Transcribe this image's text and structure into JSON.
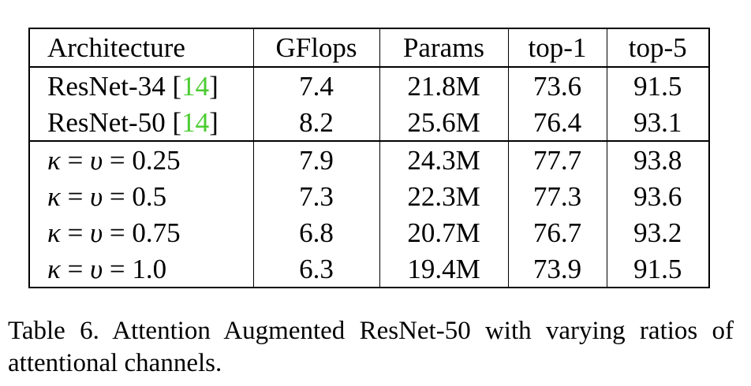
{
  "table": {
    "headers": [
      "Architecture",
      "GFlops",
      "Params",
      "top-1",
      "top-5"
    ],
    "baseline_rows": [
      {
        "arch": "ResNet-34 [",
        "cite": "14",
        "close": "]",
        "gflops": "7.4",
        "params": "21.8M",
        "top1": "73.6",
        "top5": "91.5"
      },
      {
        "arch": "ResNet-50 [",
        "cite": "14",
        "close": "]",
        "gflops": "8.2",
        "params": "25.6M",
        "top1": "76.4",
        "top5": "93.1"
      }
    ],
    "ratio_rows": [
      {
        "value": "0.25",
        "gflops": "7.9",
        "params": "24.3M",
        "top1": "77.7",
        "top5": "93.8"
      },
      {
        "value": "0.5",
        "gflops": "7.3",
        "params": "22.3M",
        "top1": "77.3",
        "top5": "93.6"
      },
      {
        "value": "0.75",
        "gflops": "6.8",
        "params": "20.7M",
        "top1": "76.7",
        "top5": "93.2"
      },
      {
        "value": "1.0",
        "gflops": "6.3",
        "params": "19.4M",
        "top1": "73.9",
        "top5": "91.5"
      }
    ],
    "kappa": "κ",
    "upsilon": "υ",
    "equals": "="
  },
  "caption": {
    "label": "Table 6.",
    "text": "Attention Augmented ResNet-50 with varying ratios of attentional channels."
  },
  "colors": {
    "cite": "#4ccc33"
  }
}
